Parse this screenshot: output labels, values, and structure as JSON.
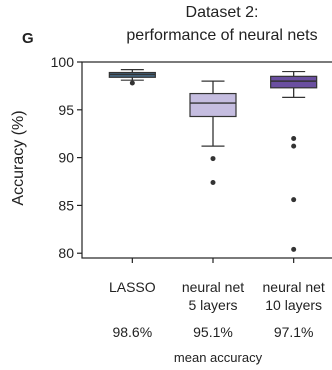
{
  "panel_label": "G",
  "chart_data": {
    "type": "box",
    "title": "Dataset 2:",
    "subtitle": "performance of neural nets",
    "ylabel": "Accuracy (%)",
    "xlabel": "",
    "ylim": [
      79.5,
      100
    ],
    "yticks": [
      80,
      85,
      90,
      95,
      100
    ],
    "grid": false,
    "legend": "none",
    "categories": [
      {
        "label_lines": [
          "LASSO"
        ],
        "mean_label": "98.6%"
      },
      {
        "label_lines": [
          "neural net",
          "5 layers"
        ],
        "mean_label": "95.1%"
      },
      {
        "label_lines": [
          "neural net",
          "10 layers"
        ],
        "mean_label": "97.1%"
      }
    ],
    "boxes": [
      {
        "q1": 98.4,
        "median": 98.7,
        "q3": 98.9,
        "whisker_low": 98.1,
        "whisker_high": 99.2,
        "outliers": [
          97.8
        ],
        "color": "#476a86"
      },
      {
        "q1": 94.3,
        "median": 95.7,
        "q3": 96.7,
        "whisker_low": 91.2,
        "whisker_high": 98.0,
        "outliers": [
          89.9,
          87.4
        ],
        "color": "#c5bde0"
      },
      {
        "q1": 97.3,
        "median": 98.0,
        "q3": 98.5,
        "whisker_low": 96.3,
        "whisker_high": 99.0,
        "outliers": [
          92.0,
          91.2,
          85.6,
          80.4
        ],
        "color": "#6a4fa0"
      }
    ],
    "footer_label": "mean accuracy"
  }
}
